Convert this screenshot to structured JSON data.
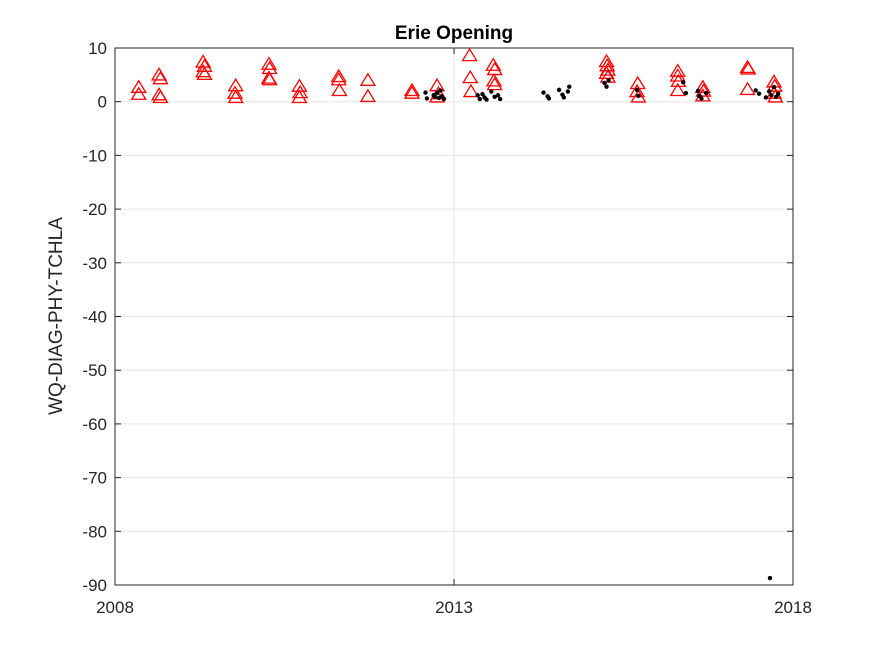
{
  "chart_data": {
    "type": "scatter",
    "title": "Erie Opening",
    "xlabel": "",
    "ylabel": "WQ-DIAG-PHY-TCHLA",
    "xlim": [
      2008,
      2018
    ],
    "ylim": [
      -90,
      10
    ],
    "xticks": [
      2008,
      2013,
      2018
    ],
    "yticks": [
      10,
      0,
      -10,
      -20,
      -30,
      -40,
      -50,
      -60,
      -70,
      -80,
      -90
    ],
    "grid": true,
    "colors": {
      "triangles": "#ff0000",
      "dots": "#000000"
    },
    "series": [
      {
        "marker": "triangle",
        "x": [
          2008.35,
          2008.35,
          2008.65,
          2008.67,
          2008.65,
          2008.67,
          2009.3,
          2009.32,
          2009.3,
          2009.32,
          2009.78,
          2009.77,
          2009.78,
          2010.27,
          2010.28,
          2010.27,
          2010.28,
          2010.72,
          2010.73,
          2010.72,
          2011.3,
          2011.3,
          2011.31,
          2011.73,
          2011.73,
          2012.38,
          2012.38,
          2012.75,
          2012.77,
          2012.75,
          2013.23,
          2013.24,
          2013.25,
          2013.58,
          2013.6,
          2013.59,
          2013.6,
          2015.25,
          2015.26,
          2015.27,
          2015.25,
          2015.27,
          2015.71,
          2015.7,
          2015.72,
          2016.3,
          2016.3,
          2016.31,
          2016.3,
          2016.67,
          2016.68,
          2016.67,
          2017.33,
          2017.34,
          2017.33,
          2017.72,
          2017.73,
          2017.72,
          2017.74
        ],
        "y": [
          2.6,
          1.3,
          4.9,
          4.2,
          1.2,
          0.7,
          7.3,
          6.5,
          5.5,
          5.0,
          2.9,
          1.5,
          0.7,
          6.9,
          6.1,
          4.3,
          4.0,
          2.8,
          1.6,
          0.7,
          4.6,
          4.0,
          2.0,
          3.9,
          0.9,
          2.0,
          1.5,
          2.9,
          1.4,
          0.8,
          8.5,
          4.4,
          1.8,
          6.7,
          5.9,
          3.8,
          3.1,
          7.4,
          6.6,
          5.8,
          5.2,
          4.5,
          3.3,
          1.8,
          0.8,
          5.6,
          4.7,
          3.7,
          2.0,
          2.6,
          1.9,
          1.0,
          6.3,
          6.0,
          2.2,
          3.6,
          2.8,
          1.5,
          0.8
        ]
      },
      {
        "marker": "dot",
        "x": [
          2012.58,
          2012.6,
          2012.7,
          2012.72,
          2012.75,
          2012.78,
          2012.8,
          2012.82,
          2012.85,
          2013.35,
          2013.38,
          2013.42,
          2013.45,
          2013.48,
          2013.55,
          2013.6,
          2013.65,
          2013.68,
          2014.32,
          2014.38,
          2014.4,
          2014.55,
          2014.6,
          2014.62,
          2014.68,
          2014.7,
          2015.22,
          2015.25,
          2015.28,
          2015.7,
          2015.72,
          2016.38,
          2016.42,
          2016.6,
          2016.62,
          2016.65,
          2016.72,
          2017.45,
          2017.5,
          2017.6,
          2017.65,
          2017.68,
          2017.72,
          2017.75,
          2017.78,
          2017.66
        ],
        "y": [
          1.7,
          0.6,
          1.2,
          0.9,
          1.6,
          0.7,
          2.1,
          1.0,
          0.5,
          1.2,
          0.5,
          1.4,
          0.8,
          0.4,
          1.9,
          0.9,
          1.2,
          0.5,
          1.7,
          1.0,
          0.6,
          2.2,
          1.3,
          0.8,
          1.9,
          2.8,
          3.5,
          2.8,
          4.0,
          2.2,
          1.1,
          3.6,
          1.6,
          2.0,
          1.1,
          0.6,
          1.6,
          2.1,
          1.5,
          0.8,
          1.9,
          1.2,
          2.7,
          0.9,
          1.5,
          -88.7
        ]
      }
    ]
  }
}
